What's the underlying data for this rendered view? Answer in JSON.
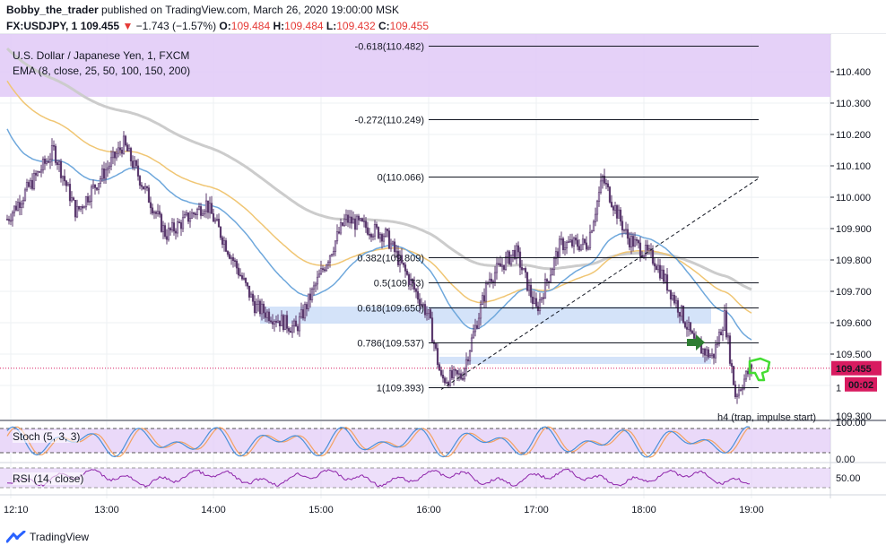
{
  "header": {
    "author": "Bobby_the_trader",
    "published_text": "published on TradingView.com, March 26, 2020 19:00:00 MSK",
    "symbol": "FX:USDJPY, 1",
    "last": "109.455",
    "change": "−1.743 (−1.57%)",
    "o_label": "O:",
    "o": "109.484",
    "h_label": "H:",
    "h": "109.484",
    "l_label": "L:",
    "l": "109.432",
    "c_label": "C:",
    "c": "109.455"
  },
  "main_pane": {
    "title": "U.S. Dollar / Japanese Yen, 1, FXCM",
    "indicator": "EMA (8, close, 25, 50, 100, 150, 200)"
  },
  "stoch_pane": {
    "title": "Stoch (5, 3, 3)"
  },
  "rsi_pane": {
    "title": "RSI (14, close)"
  },
  "footer": {
    "brand": "TradingView"
  },
  "colors": {
    "zone_purple": "#e1c9f7",
    "zone_blue": "#c9dcf7",
    "candle": "#5b3a6e",
    "ema_blue": "#6fa8dc",
    "ema_yellow": "#f0c674",
    "ema_gray": "#cccccc",
    "stoch_k": "#4a90d9",
    "stoch_d": "#f4a261",
    "rsi": "#8e24aa",
    "last_price_bg": "#d81b60",
    "arrow_green": "#2e7d32",
    "hand_green": "#44dd33"
  },
  "chart_data": {
    "type": "candlestick",
    "title": "U.S. Dollar / Japanese Yen, 1, FXCM",
    "y_range": [
      109.27,
      110.5
    ],
    "y_ticks": [
      "110.400",
      "110.300",
      "110.200",
      "110.100",
      "110.000",
      "109.900",
      "109.800",
      "109.700",
      "109.600",
      "109.500"
    ],
    "y_axis_bottom_label": "109.300",
    "x_ticks": [
      "12:10",
      "13:00",
      "14:00",
      "15:00",
      "16:00",
      "17:00",
      "18:00",
      "19:00"
    ],
    "last_price_label": "109.455",
    "timer_label": "00:02",
    "fib_levels": [
      {
        "label": "-0.618(110.482)",
        "price": 110.482
      },
      {
        "label": "-0.272(110.249)",
        "price": 110.249
      },
      {
        "label": "0(110.066)",
        "price": 110.066
      },
      {
        "label": "0.382(109.809)",
        "price": 109.809
      },
      {
        "label": "0.5(109.73)",
        "price": 109.73
      },
      {
        "label": "0.618(109.650)",
        "price": 109.65
      },
      {
        "label": "0.786(109.537)",
        "price": 109.537
      },
      {
        "label": "1(109.393)",
        "price": 109.393
      }
    ],
    "annotation": "h4 (trap, impulse start)",
    "stoch": {
      "title": "Stoch (5, 3, 3)",
      "y_ticks": [
        "100.00",
        "0.00"
      ],
      "levels": [
        80,
        20
      ]
    },
    "rsi": {
      "title": "RSI (14, close)",
      "y_ticks": [
        "50.00"
      ],
      "levels": [
        70,
        30
      ]
    }
  }
}
